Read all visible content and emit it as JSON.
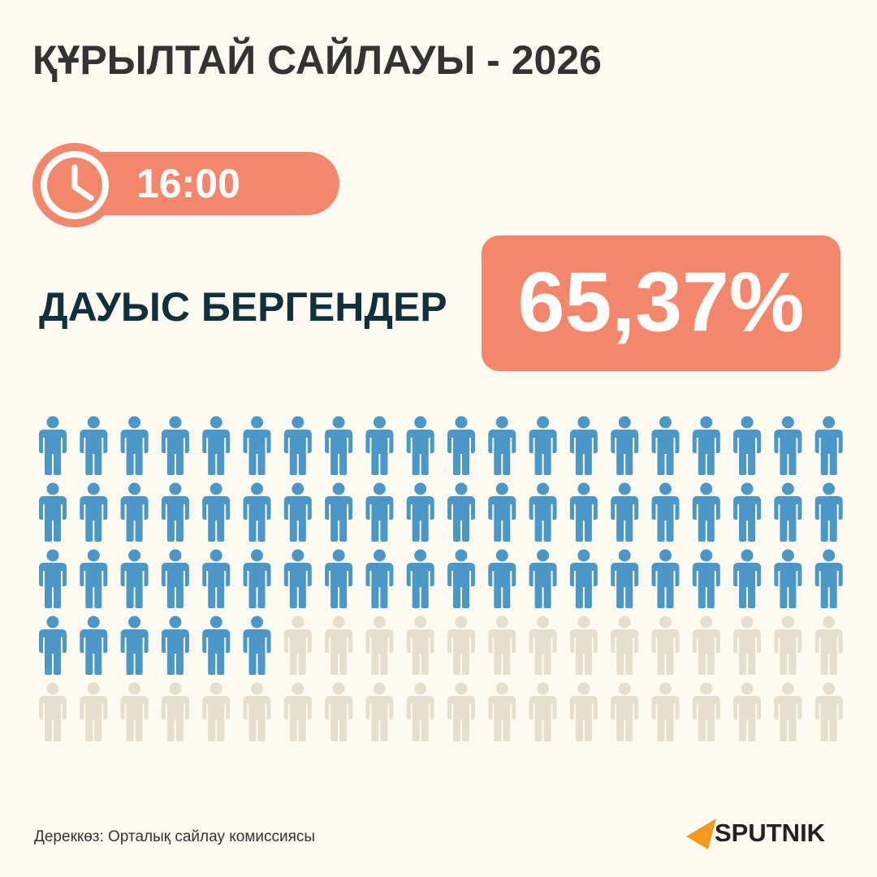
{
  "chart_data": {
    "type": "pictogram",
    "title": "ҚҰРЫЛТАЙ САЙЛАУЫ - 2026",
    "time": "16:00",
    "label": "ДАУЫС БЕРГЕНДЕР",
    "values": [
      65.37
    ],
    "value_labels": [
      "65,37%"
    ],
    "color": "#4a97c8",
    "empty_color": "#e6dfcd"
  },
  "footer": {
    "source": "Дереккөз: Орталық сайлау комиссиясы",
    "logo": "SPUTNIK"
  }
}
